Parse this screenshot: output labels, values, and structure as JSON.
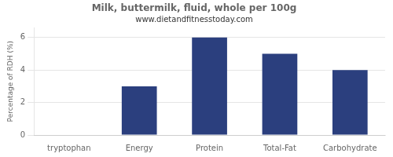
{
  "chart_data": {
    "type": "bar",
    "title": "Milk, buttermilk, fluid, whole per 100g",
    "subtitle": "www.dietandfitnesstoday.com",
    "categories": [
      "tryptophan",
      "Energy",
      "Protein",
      "Total-Fat",
      "Carbohydrate"
    ],
    "values": [
      0,
      3,
      6,
      5,
      4
    ],
    "color": "#2B3F7E",
    "ylabel": "Percentage of RDH (%)",
    "ylim": [
      0,
      6.6
    ],
    "yticks": [
      0,
      2,
      4,
      6
    ],
    "grid": true
  }
}
